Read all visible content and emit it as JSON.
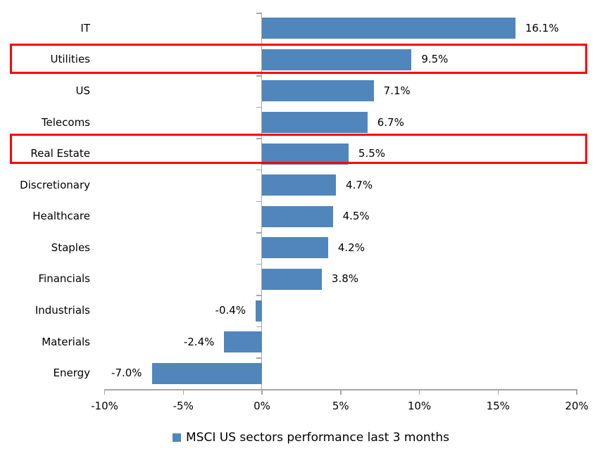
{
  "chart_data": {
    "type": "bar",
    "orientation": "horizontal",
    "title": "",
    "categories": [
      "IT",
      "Utilities",
      "US",
      "Telecoms",
      "Real Estate",
      "Discretionary",
      "Healthcare",
      "Staples",
      "Financials",
      "Industrials",
      "Materials",
      "Energy"
    ],
    "values": [
      16.1,
      9.5,
      7.1,
      6.7,
      5.5,
      4.7,
      4.5,
      4.2,
      3.8,
      -0.4,
      -2.4,
      -7.0
    ],
    "value_labels": [
      "16.1%",
      "9.5%",
      "7.1%",
      "6.7%",
      "5.5%",
      "4.7%",
      "4.5%",
      "4.2%",
      "3.8%",
      "-0.4%",
      "-2.4%",
      "-7.0%"
    ],
    "xlim": [
      -10,
      20
    ],
    "x_tick_values": [
      -10,
      -5,
      0,
      5,
      10,
      15,
      20
    ],
    "x_tick_labels": [
      "-10%",
      "-5%",
      "0%",
      "5%",
      "10%",
      "15%",
      "20%"
    ],
    "grid": false,
    "legend": "MSCI US sectors performance last 3 months",
    "legend_position": "bottom-center",
    "bar_color": "#5086BC",
    "axis_color": "#A6A6A6",
    "text_color": "#000000",
    "highlight_color": "#FF0000",
    "highlighted_categories": [
      "Utilities",
      "Real Estate"
    ]
  }
}
